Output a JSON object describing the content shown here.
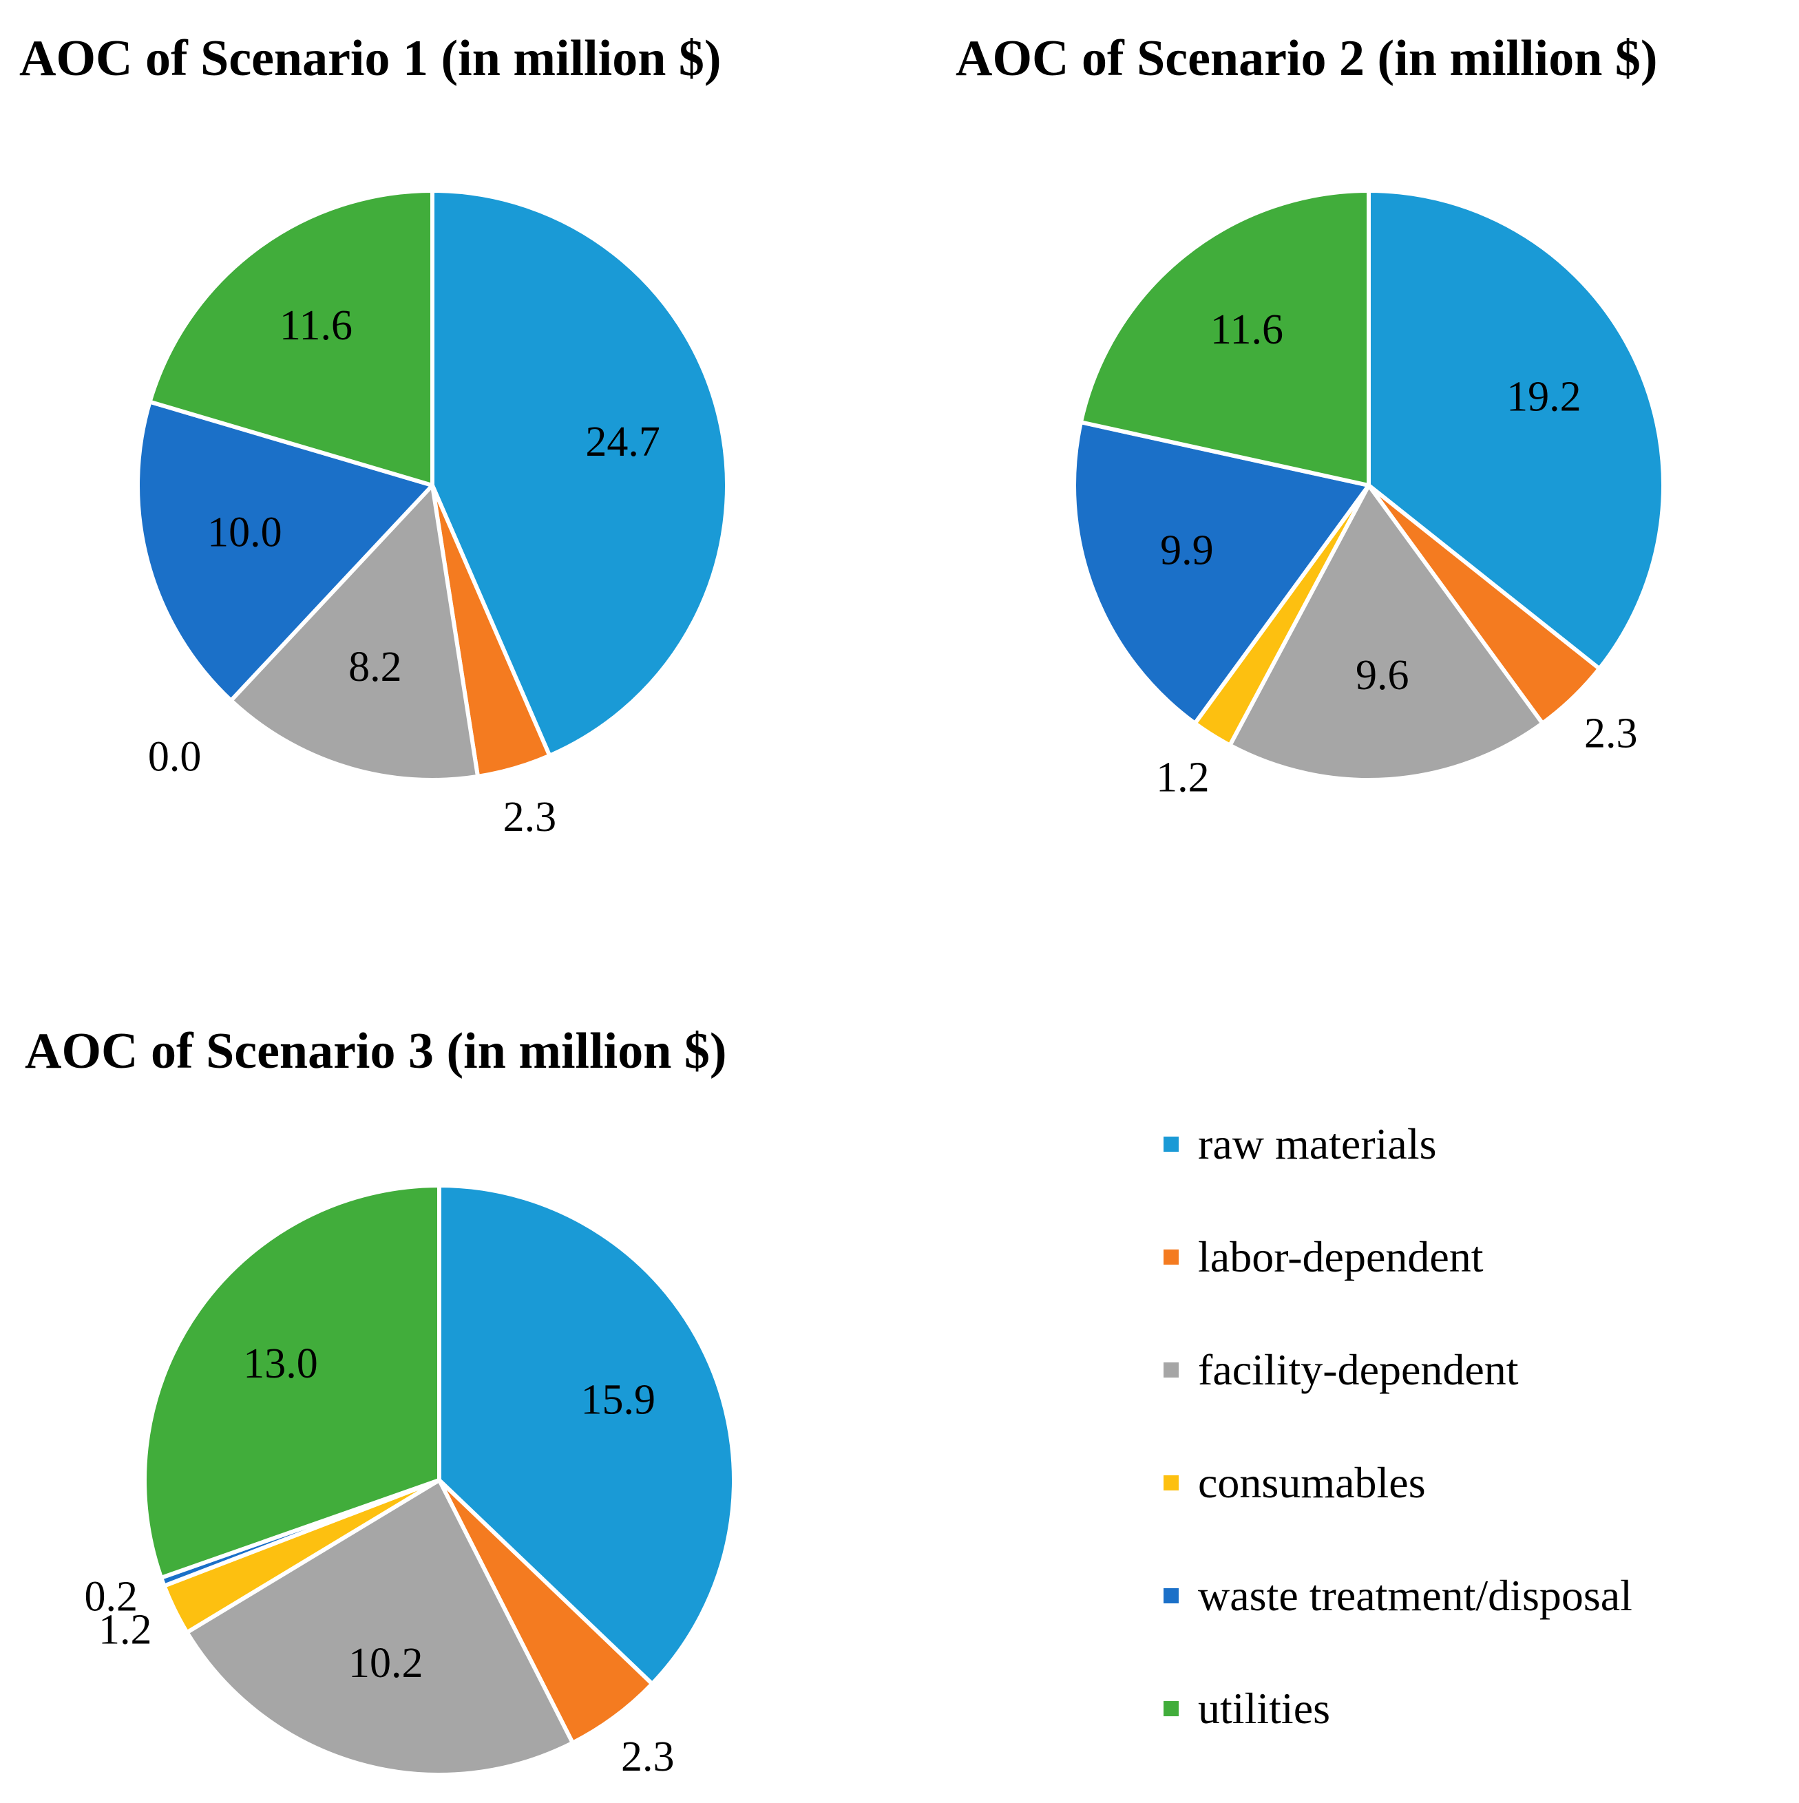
{
  "legend": [
    {
      "label": "raw materials",
      "color": "#1a9ad6"
    },
    {
      "label": "labor-dependent",
      "color": "#f47b20"
    },
    {
      "label": "facility-dependent",
      "color": "#a6a6a6"
    },
    {
      "label": "consumables",
      "color": "#fdc010"
    },
    {
      "label": "waste treatment/disposal",
      "color": "#1b70c8"
    },
    {
      "label": "utilities",
      "color": "#41ad3b"
    }
  ],
  "chart_data": [
    {
      "type": "pie",
      "title": "AOC of Scenario 1 (in million $)",
      "categories": [
        "raw materials",
        "labor-dependent",
        "facility-dependent",
        "consumables",
        "waste treatment/disposal",
        "utilities"
      ],
      "values": [
        24.7,
        2.3,
        8.2,
        0.0,
        10.0,
        11.6
      ],
      "labels": [
        "24.7",
        "2.3",
        "8.2",
        "0.0",
        "10.0",
        "11.6"
      ]
    },
    {
      "type": "pie",
      "title": "AOC of Scenario 2 (in million $)",
      "categories": [
        "raw materials",
        "labor-dependent",
        "facility-dependent",
        "consumables",
        "waste treatment/disposal",
        "utilities"
      ],
      "values": [
        19.2,
        2.3,
        9.6,
        1.2,
        9.9,
        11.6
      ],
      "labels": [
        "19.2",
        "2.3",
        "9.6",
        "1.2",
        "9.9",
        "11.6"
      ]
    },
    {
      "type": "pie",
      "title": "AOC of Scenario 3 (in million $)",
      "categories": [
        "raw materials",
        "labor-dependent",
        "facility-dependent",
        "consumables",
        "waste treatment/disposal",
        "utilities"
      ],
      "values": [
        15.9,
        2.3,
        10.2,
        1.2,
        0.2,
        13.0
      ],
      "labels": [
        "15.9",
        "2.3",
        "10.2",
        "1.2",
        "0.2",
        "13.0"
      ]
    }
  ]
}
